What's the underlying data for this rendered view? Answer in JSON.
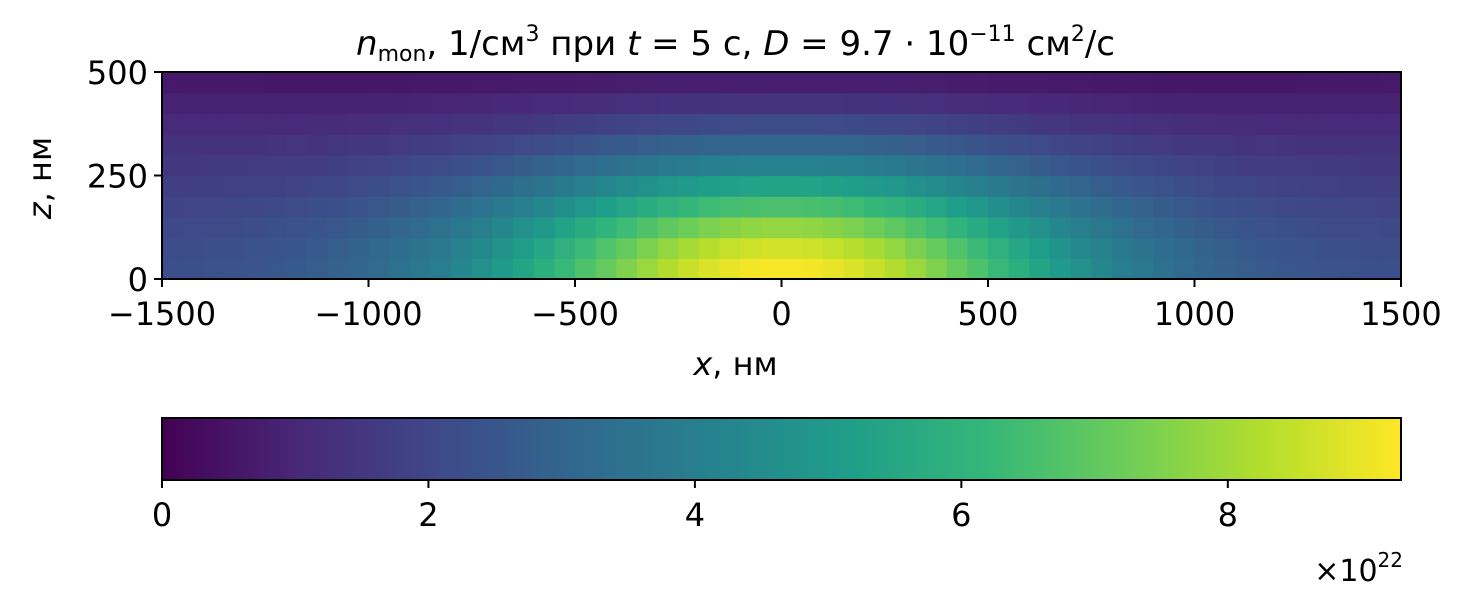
{
  "title": {
    "var": "n",
    "sub": "mon",
    "unit_pre": ", 1/см",
    "unit_sup": "3",
    "mid": " при ",
    "t": "t",
    "t_val": " = 5 с, ",
    "d": "D",
    "d_val": " = 9.7 · 10",
    "d_exp": "−11",
    "d_unit": " см",
    "d_unit_sup": "2",
    "d_unit_tail": "/с"
  },
  "xlabel": {
    "var": "x",
    "unit": ", нм"
  },
  "ylabel": {
    "var": "z",
    "unit": ", нм"
  },
  "colorbar_multiplier": {
    "base": "×10",
    "exp": "22"
  },
  "chart_data": {
    "type": "heatmap",
    "colormap": "viridis",
    "x_range": [
      -1500,
      1500
    ],
    "z_range": [
      0,
      500
    ],
    "x_bins": 60,
    "z_bins": 10,
    "x_ticks": [
      -1500,
      -1000,
      -500,
      0,
      500,
      1000,
      1500
    ],
    "x_tick_labels": [
      "−1500",
      "−1000",
      "−500",
      "0",
      "500",
      "1000",
      "1500"
    ],
    "z_ticks": [
      0,
      250,
      500
    ],
    "z_tick_labels": [
      "0",
      "250",
      "500"
    ],
    "colorbar": {
      "range": [
        0,
        9.3
      ],
      "ticks": [
        0,
        2,
        4,
        6,
        8
      ],
      "tick_labels": [
        "0",
        "2",
        "4",
        "6",
        "8"
      ],
      "units_scale": "1e22",
      "orientation": "horizontal",
      "placement": "below"
    },
    "value_model": {
      "description_units": "1e22 1/см^3",
      "floor_at_center": 2.2,
      "floor_at_edge": 0.2,
      "peak_amplitude": 7.1,
      "sigma_x_nm": 500,
      "sigma_z_nm": 200
    }
  }
}
